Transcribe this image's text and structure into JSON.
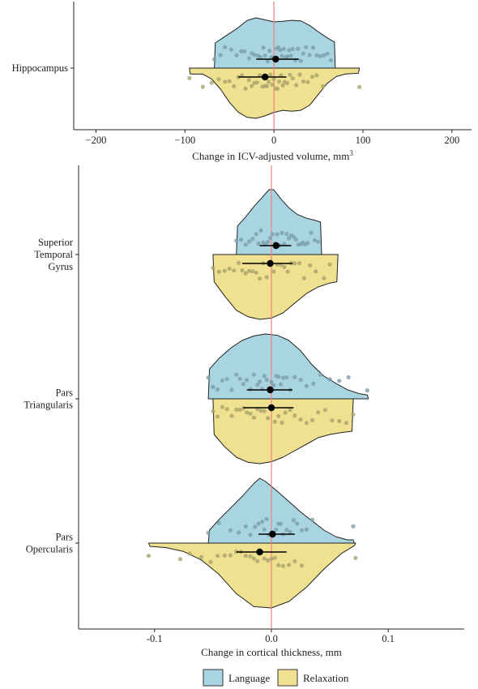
{
  "colors": {
    "Language": "#a9d5e3",
    "Relaxation": "#efe18f",
    "zero_line": "#f08080",
    "Language_points": "#7d9eaa",
    "Relaxation_points": "#a9a46a"
  },
  "legend": {
    "position": "bottom",
    "items": [
      {
        "label": "Language",
        "color": "#a9d5e3"
      },
      {
        "label": "Relaxation",
        "color": "#efe18f"
      }
    ]
  },
  "chart_data": [
    {
      "type": "raincloud",
      "xlabel_main": "Change in ICV-adjusted volume, mm",
      "xlabel_sup": "3",
      "xlim": [
        -225,
        222
      ],
      "xticks": [
        -200,
        -100,
        0,
        100,
        200
      ],
      "xtick_labels": [
        "−200",
        "−100",
        "0",
        "100",
        "200"
      ],
      "reference_line_x": 0,
      "categories": [
        "Hippocampus"
      ],
      "category_lines": [
        [
          "Hippocampus"
        ]
      ],
      "series": [
        {
          "name": "Language",
          "side": "upper",
          "by_category": [
            {
              "category": "Hippocampus",
              "mean": 2,
              "ci": [
                -20,
                28
              ],
              "density_x": [
                -67,
                -66,
                -55,
                -42,
                -30,
                -20,
                -10,
                0,
                10,
                20,
                30,
                40,
                50,
                60,
                68,
                69
              ],
              "density_y": [
                0,
                0.5,
                0.63,
                0.78,
                0.95,
                1.0,
                0.96,
                0.92,
                0.93,
                0.95,
                0.94,
                0.85,
                0.72,
                0.6,
                0.52,
                0
              ],
              "points": [
                -67,
                -60,
                -55,
                -48,
                -42,
                -37,
                -33,
                -28,
                -25,
                -22,
                -18,
                -15,
                -12,
                -10,
                -7,
                -5,
                -3,
                -1,
                1,
                3,
                5,
                7,
                9,
                11,
                13,
                15,
                17,
                19,
                21,
                24,
                27,
                30,
                33,
                36,
                40,
                44,
                48,
                52,
                56,
                60,
                64
              ]
            }
          ]
        },
        {
          "name": "Relaxation",
          "side": "lower",
          "by_category": [
            {
              "category": "Hippocampus",
              "mean": -10,
              "ci": [
                -40,
                14
              ],
              "density_x": [
                -95,
                -94,
                -80,
                -70,
                -60,
                -50,
                -40,
                -30,
                -20,
                -10,
                0,
                10,
                20,
                30,
                40,
                50,
                60,
                70,
                80,
                95,
                96
              ],
              "density_y": [
                0,
                0.12,
                0.12,
                0.22,
                0.42,
                0.68,
                0.88,
                0.98,
                1.0,
                0.95,
                0.88,
                0.84,
                0.86,
                0.84,
                0.74,
                0.52,
                0.3,
                0.17,
                0.12,
                0.1,
                0
              ],
              "points": [
                -95,
                -80,
                -70,
                -62,
                -55,
                -50,
                -45,
                -40,
                -36,
                -32,
                -28,
                -25,
                -22,
                -19,
                -16,
                -13,
                -10,
                -8,
                -6,
                -4,
                -2,
                0,
                2,
                4,
                6,
                8,
                10,
                12,
                15,
                18,
                21,
                25,
                29,
                33,
                38,
                43,
                48,
                55,
                96
              ]
            }
          ]
        }
      ]
    },
    {
      "type": "raincloud",
      "xlabel_main": "Change in cortical thickness, mm",
      "xlabel_sup": "",
      "xlim": [
        -0.165,
        0.165
      ],
      "xticks": [
        -0.1,
        0,
        0.1
      ],
      "xtick_labels": [
        "-0.1",
        "0.0",
        "0.1"
      ],
      "reference_line_x": 0,
      "categories": [
        "Superior Temporal Gyrus",
        "Pars Triangularis",
        "Pars Opercularis"
      ],
      "category_lines": [
        [
          "Superior",
          "Temporal",
          "Gyrus"
        ],
        [
          "Pars",
          "Triangularis"
        ],
        [
          "Pars",
          "Opercularis"
        ]
      ],
      "series": [
        {
          "name": "Language",
          "side": "upper",
          "by_category": [
            {
              "category": "Superior Temporal Gyrus",
              "mean": 0.004,
              "ci": [
                -0.01,
                0.017
              ],
              "density_x": [
                -0.03,
                -0.029,
                -0.022,
                -0.015,
                -0.008,
                -0.002,
                0.002,
                0.008,
                0.015,
                0.022,
                0.03,
                0.037,
                0.042,
                0.043
              ],
              "density_y": [
                0,
                0.44,
                0.58,
                0.74,
                0.88,
                1.0,
                1.0,
                0.86,
                0.72,
                0.62,
                0.56,
                0.53,
                0.5,
                0
              ],
              "points": [
                -0.03,
                -0.026,
                -0.022,
                -0.019,
                -0.016,
                -0.013,
                -0.011,
                -0.009,
                -0.007,
                -0.005,
                -0.003,
                -0.001,
                0.001,
                0.003,
                0.005,
                0.007,
                0.009,
                0.011,
                0.013,
                0.015,
                0.017,
                0.019,
                0.021,
                0.023,
                0.025,
                0.027,
                0.029,
                0.031,
                0.034,
                0.037,
                0.04
              ]
            },
            {
              "category": "Pars Triangularis",
              "mean": -0.001,
              "ci": [
                -0.021,
                0.018
              ],
              "density_x": [
                -0.054,
                -0.053,
                -0.045,
                -0.035,
                -0.025,
                -0.015,
                -0.005,
                0.005,
                0.015,
                0.025,
                0.035,
                0.045,
                0.055,
                0.065,
                0.075,
                0.082,
                0.083
              ],
              "density_y": [
                0,
                0.46,
                0.62,
                0.78,
                0.9,
                0.97,
                1.0,
                0.98,
                0.9,
                0.74,
                0.52,
                0.35,
                0.24,
                0.14,
                0.08,
                0.06,
                0
              ],
              "points": [
                -0.054,
                -0.05,
                -0.046,
                -0.042,
                -0.038,
                -0.034,
                -0.03,
                -0.027,
                -0.024,
                -0.021,
                -0.018,
                -0.015,
                -0.012,
                -0.01,
                -0.008,
                -0.006,
                -0.004,
                -0.002,
                0,
                0.002,
                0.004,
                0.006,
                0.008,
                0.01,
                0.013,
                0.016,
                0.02,
                0.025,
                0.03,
                0.036,
                0.042,
                0.05,
                0.058,
                0.066,
                0.082
              ]
            },
            {
              "category": "Pars Opercularis",
              "mean": 0.001,
              "ci": [
                -0.011,
                0.02
              ],
              "density_x": [
                -0.054,
                -0.053,
                -0.045,
                -0.035,
                -0.025,
                -0.015,
                -0.01,
                -0.005,
                0.005,
                0.015,
                0.025,
                0.035,
                0.045,
                0.055,
                0.065,
                0.07,
                0.071
              ],
              "density_y": [
                0,
                0.2,
                0.36,
                0.54,
                0.72,
                0.92,
                1.0,
                0.95,
                0.8,
                0.64,
                0.48,
                0.34,
                0.2,
                0.1,
                0.05,
                0.05,
                0
              ],
              "points": [
                -0.054,
                -0.045,
                -0.035,
                -0.028,
                -0.022,
                -0.018,
                -0.014,
                -0.011,
                -0.008,
                -0.006,
                -0.004,
                -0.002,
                0,
                0.002,
                0.004,
                0.006,
                0.008,
                0.01,
                0.013,
                0.016,
                0.019,
                0.022,
                0.026,
                0.03,
                0.035,
                0.07
              ]
            }
          ]
        },
        {
          "name": "Relaxation",
          "side": "lower",
          "by_category": [
            {
              "category": "Superior Temporal Gyrus",
              "mean": -0.001,
              "ci": [
                -0.025,
                0.018
              ],
              "density_x": [
                -0.05,
                -0.049,
                -0.04,
                -0.03,
                -0.02,
                -0.01,
                0,
                0.01,
                0.02,
                0.03,
                0.04,
                0.05,
                0.056,
                0.057
              ],
              "density_y": [
                0,
                0.42,
                0.64,
                0.86,
                0.96,
                1.0,
                0.98,
                0.9,
                0.75,
                0.6,
                0.5,
                0.44,
                0.42,
                0
              ],
              "points": [
                -0.05,
                -0.045,
                -0.04,
                -0.036,
                -0.032,
                -0.028,
                -0.025,
                -0.022,
                -0.019,
                -0.016,
                -0.013,
                -0.01,
                -0.007,
                -0.004,
                -0.001,
                0.002,
                0.005,
                0.008,
                0.011,
                0.014,
                0.017,
                0.02,
                0.024,
                0.028,
                0.033,
                0.038,
                0.045,
                0.05
              ]
            },
            {
              "category": "Pars Triangularis",
              "mean": 0,
              "ci": [
                -0.024,
                0.019
              ],
              "density_x": [
                -0.05,
                -0.049,
                -0.04,
                -0.03,
                -0.02,
                -0.01,
                0,
                0.01,
                0.02,
                0.03,
                0.04,
                0.05,
                0.06,
                0.069,
                0.07
              ],
              "density_y": [
                0,
                0.55,
                0.74,
                0.9,
                0.98,
                1.0,
                0.97,
                0.9,
                0.8,
                0.7,
                0.6,
                0.55,
                0.52,
                0.5,
                0
              ],
              "points": [
                -0.05,
                -0.046,
                -0.042,
                -0.038,
                -0.034,
                -0.03,
                -0.027,
                -0.024,
                -0.021,
                -0.018,
                -0.015,
                -0.012,
                -0.009,
                -0.006,
                -0.003,
                0,
                0.003,
                0.006,
                0.009,
                0.012,
                0.016,
                0.02,
                0.025,
                0.03,
                0.035,
                0.04,
                0.046,
                0.052,
                0.058,
                0.064,
                0.07
              ]
            },
            {
              "category": "Pars Opercularis",
              "mean": -0.01,
              "ci": [
                -0.03,
                0.013
              ],
              "density_x": [
                -0.105,
                -0.104,
                -0.09,
                -0.075,
                -0.06,
                -0.045,
                -0.03,
                -0.015,
                0,
                0.015,
                0.03,
                0.045,
                0.06,
                0.071,
                0.072
              ],
              "density_y": [
                0,
                0.05,
                0.07,
                0.13,
                0.26,
                0.48,
                0.78,
                0.98,
                1.0,
                0.9,
                0.68,
                0.4,
                0.16,
                0.04,
                0
              ],
              "points": [
                -0.105,
                -0.078,
                -0.07,
                -0.06,
                -0.052,
                -0.046,
                -0.04,
                -0.035,
                -0.03,
                -0.026,
                -0.022,
                -0.018,
                -0.015,
                -0.012,
                -0.009,
                -0.006,
                -0.003,
                0,
                0.003,
                0.006,
                0.01,
                0.015,
                0.02,
                0.026,
                0.072
              ]
            }
          ]
        }
      ]
    }
  ]
}
